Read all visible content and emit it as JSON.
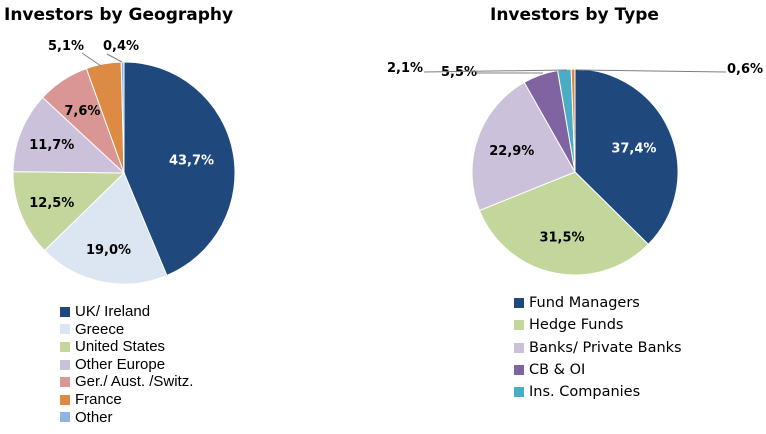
{
  "chart_data": [
    {
      "type": "pie",
      "title": "Investors by Geography",
      "slices": [
        {
          "name": "UK/ Ireland",
          "value": 43.7,
          "label": "43,7%",
          "color": "#1f497d"
        },
        {
          "name": "Greece",
          "value": 19.0,
          "label": "19,0%",
          "color": "#dce6f2"
        },
        {
          "name": "United States",
          "value": 12.5,
          "label": "12,5%",
          "color": "#c3d69b"
        },
        {
          "name": "Other Europe",
          "value": 11.7,
          "label": "11,7%",
          "color": "#ccc1da"
        },
        {
          "name": "Ger./ Aust. /Switz.",
          "value": 7.6,
          "label": "7,6%",
          "color": "#d99694"
        },
        {
          "name": "France",
          "value": 5.1,
          "label": "5,1%",
          "color": "#dd8a45"
        },
        {
          "name": "Other",
          "value": 0.4,
          "label": "0,4%",
          "color": "#8eb4e3"
        }
      ]
    },
    {
      "type": "pie",
      "title": "Investors by Type",
      "slices": [
        {
          "name": "Fund Managers",
          "value": 37.4,
          "label": "37,4%",
          "color": "#1f497d"
        },
        {
          "name": "Hedge Funds",
          "value": 31.5,
          "label": "31,5%",
          "color": "#c3d69b"
        },
        {
          "name": "Banks/ Private Banks",
          "value": 22.9,
          "label": "22,9%",
          "color": "#ccc1da"
        },
        {
          "name": "CB & OI",
          "value": 5.5,
          "label": "5,5%",
          "color": "#8064a2"
        },
        {
          "name": "Ins. Companies",
          "value": 2.1,
          "label": "2,1%",
          "color": "#4bacc6"
        },
        {
          "name": "",
          "value": 0.6,
          "label": "0,6%",
          "color": "#dd8a45"
        }
      ]
    }
  ]
}
